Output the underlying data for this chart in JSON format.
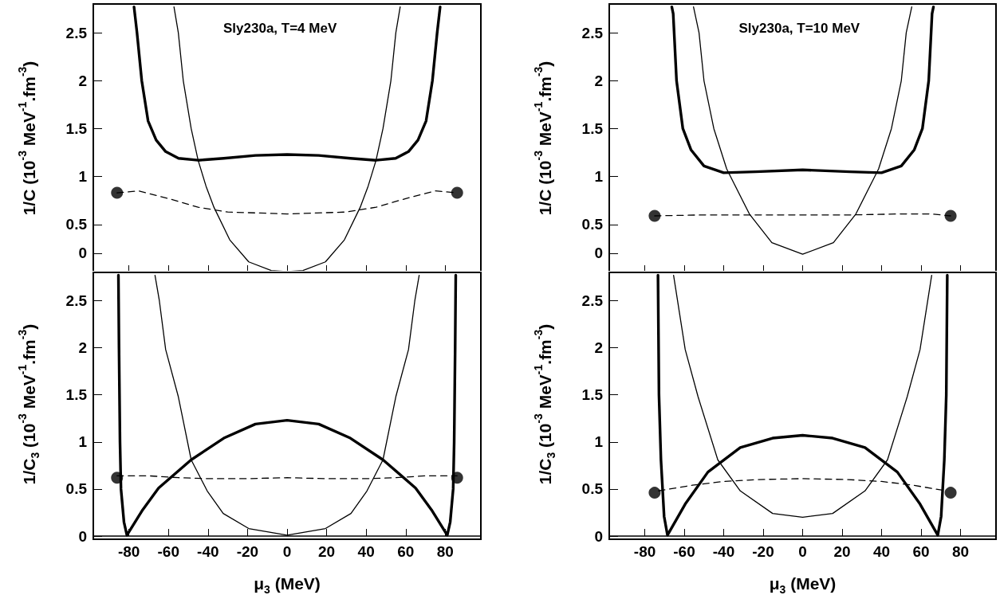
{
  "chart_data": [
    {
      "type": "line",
      "ylabel": "1/C (10$^{-3}$ MeV$^{-1}$.fm$^{-3}$)",
      "annotations": [
        "Sly230a, T=4 MeV"
      ],
      "xlim": [
        -98,
        98
      ],
      "xticks": [
        -80,
        -60,
        -40,
        -20,
        0,
        20,
        40,
        60,
        80
      ],
      "ylim": [
        0,
        2.8
      ],
      "yticks": [
        {
          "value": 0.2,
          "label": "0"
        },
        0.5,
        1,
        1.5,
        2,
        2.5
      ],
      "tick_labels": "y",
      "series": [
        {
          "color": "#000000",
          "line_style": "solid",
          "marker": "none",
          "x": [
            -77.4,
            -75.9,
            -73.5,
            -70.3,
            -66.2,
            -61.4,
            -54.9,
            -45,
            -32,
            -16,
            0,
            16,
            32,
            45,
            54.9,
            61.4,
            66.2,
            70.3,
            73.5,
            75.9,
            77.4
          ],
          "values": [
            2.77,
            2.5,
            2.0,
            1.58,
            1.38,
            1.26,
            1.19,
            1.17,
            1.19,
            1.22,
            1.23,
            1.22,
            1.19,
            1.17,
            1.19,
            1.26,
            1.38,
            1.58,
            2.0,
            2.5,
            2.77
          ]
        },
        {
          "color": "#000000",
          "line_style": "solid",
          "marker": "none",
          "x": [
            -57.2,
            -55,
            -52.5,
            -48.5,
            -45,
            -41,
            -37,
            -29,
            -19.4,
            -8,
            0,
            8,
            19.4,
            29,
            37,
            41,
            45,
            48.5,
            52.5,
            55,
            57.2
          ],
          "values": [
            2.77,
            2.5,
            2.0,
            1.5,
            1.17,
            0.9,
            0.68,
            0.34,
            0.11,
            0.02,
            0.01,
            0.02,
            0.11,
            0.34,
            0.68,
            0.9,
            1.17,
            1.5,
            2.0,
            2.5,
            2.77
          ]
        },
        {
          "color": "#000000",
          "line_style": "dashed",
          "marker": "none",
          "x": [
            -86,
            -75,
            -60,
            -45,
            -30,
            -15,
            0,
            15,
            30,
            45,
            60,
            75,
            86
          ],
          "values": [
            0.83,
            0.85,
            0.77,
            0.68,
            0.63,
            0.62,
            0.61,
            0.62,
            0.63,
            0.68,
            0.77,
            0.85,
            0.83
          ]
        },
        {
          "type": "scatter",
          "color": "#000000",
          "marker": "circle",
          "x": [
            -86,
            86
          ],
          "values": [
            0.83,
            0.83
          ]
        }
      ]
    },
    {
      "type": "line",
      "ylabel": "1/C (10$^{-3}$ MeV$^{-1}$.fm$^{-3}$)",
      "annotations": [
        "Sly230a, T=10 MeV"
      ],
      "xlim": [
        -98,
        98
      ],
      "xticks": [
        -80,
        -60,
        -40,
        -20,
        0,
        20,
        40,
        60,
        80
      ],
      "ylim": [
        0,
        2.8
      ],
      "yticks": [
        {
          "value": 0.2,
          "label": "0"
        },
        0.5,
        1,
        1.5,
        2,
        2.5
      ],
      "tick_labels": "y",
      "series": [
        {
          "color": "#000000",
          "line_style": "solid",
          "marker": "none",
          "x": [
            -66.3,
            -65.6,
            -63.9,
            -60.7,
            -56.6,
            -50,
            -40,
            -24,
            0,
            24,
            40,
            50,
            56.6,
            60.7,
            63.9,
            65.6,
            66.3
          ],
          "values": [
            2.77,
            2.7,
            2.0,
            1.5,
            1.28,
            1.11,
            1.04,
            1.05,
            1.07,
            1.05,
            1.04,
            1.11,
            1.28,
            1.5,
            2.0,
            2.7,
            2.77
          ]
        },
        {
          "color": "#000000",
          "line_style": "solid",
          "marker": "none",
          "x": [
            -55.3,
            -52.5,
            -50,
            -45,
            -38.5,
            -27,
            -15.6,
            0,
            15.6,
            27,
            38.5,
            45,
            50,
            52.5,
            55.3
          ],
          "values": [
            2.77,
            2.5,
            2.0,
            1.5,
            1.08,
            0.61,
            0.31,
            0.19,
            0.31,
            0.61,
            1.08,
            1.5,
            2.0,
            2.5,
            2.77
          ]
        },
        {
          "color": "#000000",
          "line_style": "dashed",
          "marker": "none",
          "x": [
            -75,
            -50,
            -25,
            0,
            25,
            50,
            65,
            75
          ],
          "values": [
            0.59,
            0.6,
            0.6,
            0.6,
            0.6,
            0.61,
            0.61,
            0.59
          ]
        },
        {
          "type": "scatter",
          "color": "#000000",
          "marker": "circle",
          "x": [
            -75,
            75
          ],
          "values": [
            0.59,
            0.59
          ]
        }
      ]
    },
    {
      "type": "line",
      "xlabel": "μ$_{3}$ (MeV)",
      "ylabel": "1/C$_{3}$ (10$^{-3}$ MeV$^{-1}$.fm$^{-3}$)",
      "xlim": [
        -98,
        98
      ],
      "xticks": [
        -80,
        -60,
        -40,
        -20,
        0,
        20,
        40,
        60,
        80
      ],
      "ylim": [
        0,
        2.8
      ],
      "yticks": [
        0,
        0.5,
        1,
        1.5,
        2,
        2.5
      ],
      "series": [
        {
          "color": "#000000",
          "line_style": "solid",
          "marker": "none",
          "x": [
            -85.3,
            -85,
            -84.5,
            -84,
            -82.5,
            -81,
            -73,
            -65,
            -48.5,
            -32,
            -16,
            0,
            16,
            32,
            48.5,
            65,
            73,
            81,
            82.5,
            84,
            84.5,
            85,
            85.3
          ],
          "values": [
            2.77,
            2.0,
            1.0,
            0.5,
            0.15,
            0.01,
            0.28,
            0.51,
            0.81,
            1.04,
            1.19,
            1.23,
            1.19,
            1.04,
            0.81,
            0.51,
            0.28,
            0.01,
            0.15,
            0.5,
            1.0,
            2.0,
            2.77
          ]
        },
        {
          "color": "#000000",
          "line_style": "solid",
          "marker": "none",
          "x": [
            -66.8,
            -64.6,
            -61.4,
            -55,
            -48.5,
            -40.4,
            -32.3,
            -19.4,
            0,
            19.4,
            32.3,
            40.4,
            48.5,
            55,
            61.4,
            64.6,
            66.8
          ],
          "values": [
            2.77,
            2.5,
            1.98,
            1.48,
            0.81,
            0.48,
            0.24,
            0.08,
            0.01,
            0.08,
            0.24,
            0.48,
            0.81,
            1.48,
            1.98,
            2.5,
            2.77
          ]
        },
        {
          "color": "#000000",
          "line_style": "dashed",
          "marker": "none",
          "x": [
            -86,
            -70,
            -55,
            -40,
            -20,
            0,
            20,
            40,
            55,
            70,
            86
          ],
          "values": [
            0.64,
            0.64,
            0.62,
            0.61,
            0.61,
            0.62,
            0.61,
            0.61,
            0.62,
            0.64,
            0.64
          ]
        },
        {
          "type": "scatter",
          "color": "#000000",
          "marker": "circle",
          "x": [
            -86,
            86
          ],
          "values": [
            0.62,
            0.62
          ]
        }
      ]
    },
    {
      "type": "line",
      "xlabel": "μ$_{3}$ (MeV)",
      "ylabel": "1/C$_{3}$ (10$^{-3}$ MeV$^{-1}$.fm$^{-3}$)",
      "xlim": [
        -98,
        98
      ],
      "xticks": [
        -80,
        -60,
        -40,
        -20,
        0,
        20,
        40,
        60,
        80
      ],
      "ylim": [
        0,
        2.8
      ],
      "yticks": [
        0,
        0.5,
        1,
        1.5,
        2,
        2.5
      ],
      "series": [
        {
          "color": "#000000",
          "line_style": "solid",
          "marker": "none",
          "x": [
            -73.3,
            -72.8,
            -71.8,
            -70.2,
            -68.5,
            -59.5,
            -48,
            -31.6,
            -15.2,
            0,
            15.2,
            31.6,
            48,
            59.5,
            68.5,
            70.2,
            71.8,
            72.8,
            73.3
          ],
          "values": [
            2.77,
            1.5,
            0.81,
            0.21,
            0.01,
            0.34,
            0.68,
            0.94,
            1.04,
            1.07,
            1.04,
            0.94,
            0.68,
            0.34,
            0.01,
            0.21,
            0.81,
            1.5,
            2.77
          ]
        },
        {
          "color": "#000000",
          "line_style": "solid",
          "marker": "none",
          "x": [
            -65.4,
            -59.5,
            -53,
            -43,
            -31.6,
            -15.2,
            0,
            15.2,
            31.6,
            43,
            53,
            59.5,
            65.4
          ],
          "values": [
            2.77,
            1.98,
            1.48,
            0.81,
            0.48,
            0.24,
            0.2,
            0.24,
            0.48,
            0.81,
            1.48,
            1.98,
            2.77
          ]
        },
        {
          "color": "#000000",
          "line_style": "dashed",
          "marker": "none",
          "x": [
            -73,
            -56,
            -40,
            -23,
            0,
            23,
            40,
            56,
            73
          ],
          "values": [
            0.48,
            0.54,
            0.58,
            0.6,
            0.61,
            0.6,
            0.58,
            0.54,
            0.48
          ]
        },
        {
          "type": "scatter",
          "color": "#000000",
          "marker": "circle",
          "x": [
            -75,
            75
          ],
          "values": [
            0.46,
            0.46
          ]
        }
      ]
    }
  ]
}
